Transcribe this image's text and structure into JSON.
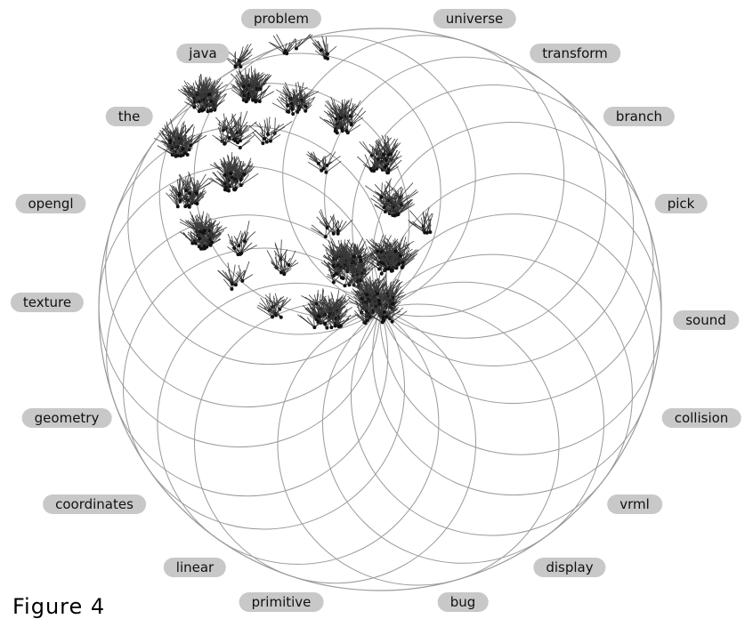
{
  "figure": {
    "caption": "Figure 4"
  },
  "keywords": [
    {
      "id": "problem",
      "label": "problem"
    },
    {
      "id": "universe",
      "label": "universe"
    },
    {
      "id": "transform",
      "label": "transform"
    },
    {
      "id": "branch",
      "label": "branch"
    },
    {
      "id": "pick",
      "label": "pick"
    },
    {
      "id": "sound",
      "label": "sound"
    },
    {
      "id": "collision",
      "label": "collision"
    },
    {
      "id": "vrml",
      "label": "vrml"
    },
    {
      "id": "display",
      "label": "display"
    },
    {
      "id": "bug",
      "label": "bug"
    },
    {
      "id": "primitive",
      "label": "primitive"
    },
    {
      "id": "linear",
      "label": "linear"
    },
    {
      "id": "coordinates",
      "label": "coordinates"
    },
    {
      "id": "geometry",
      "label": "geometry"
    },
    {
      "id": "texture",
      "label": "texture"
    },
    {
      "id": "opengl",
      "label": "opengl"
    },
    {
      "id": "the",
      "label": "the"
    },
    {
      "id": "java",
      "label": "java"
    }
  ],
  "colors": {
    "ring": "#9a9a9a",
    "glyph": "#3a3a3a",
    "pill": "#c8c8c8"
  }
}
